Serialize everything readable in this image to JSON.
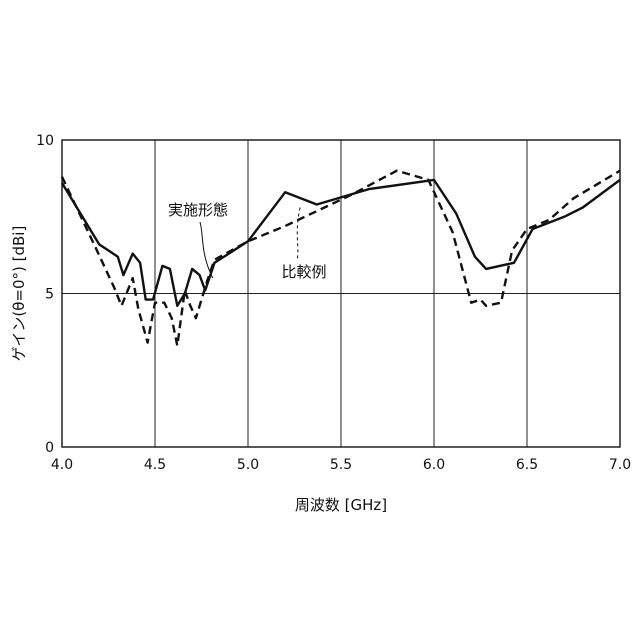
{
  "chart_data": {
    "type": "line",
    "xlabel": "周波数 [GHz]",
    "ylabel": "ゲイン(θ=0°) [dBi]",
    "xlim": [
      4.0,
      7.0
    ],
    "ylim": [
      0,
      10
    ],
    "x_ticks": [
      4.0,
      4.5,
      5.0,
      5.5,
      6.0,
      6.5,
      7.0
    ],
    "x_tick_labels": [
      "4.0",
      "4.5",
      "5.0",
      "5.5",
      "6.0",
      "6.5",
      "7.0"
    ],
    "y_ticks": [
      0,
      5,
      10
    ],
    "y_tick_labels": [
      "0",
      "5",
      "10"
    ],
    "grid": true,
    "series": [
      {
        "name": "実施形態",
        "style": "solid",
        "color": "#111111",
        "points": [
          [
            4.0,
            8.6
          ],
          [
            4.2,
            6.6
          ],
          [
            4.3,
            6.2
          ],
          [
            4.33,
            5.6
          ],
          [
            4.38,
            6.3
          ],
          [
            4.42,
            6.0
          ],
          [
            4.45,
            4.8
          ],
          [
            4.49,
            4.8
          ],
          [
            4.54,
            5.9
          ],
          [
            4.58,
            5.8
          ],
          [
            4.62,
            4.6
          ],
          [
            4.66,
            5.0
          ],
          [
            4.7,
            5.8
          ],
          [
            4.74,
            5.6
          ],
          [
            4.77,
            5.1
          ],
          [
            4.82,
            6.0
          ],
          [
            5.0,
            6.7
          ],
          [
            5.2,
            8.3
          ],
          [
            5.37,
            7.9
          ],
          [
            5.65,
            8.4
          ],
          [
            6.0,
            8.7
          ],
          [
            6.12,
            7.6
          ],
          [
            6.22,
            6.2
          ],
          [
            6.28,
            5.8
          ],
          [
            6.43,
            6.0
          ],
          [
            6.53,
            7.1
          ],
          [
            6.7,
            7.5
          ],
          [
            6.8,
            7.8
          ],
          [
            7.0,
            8.7
          ]
        ]
      },
      {
        "name": "比較例",
        "style": "dashed",
        "color": "#111111",
        "points": [
          [
            4.0,
            8.8
          ],
          [
            4.18,
            6.5
          ],
          [
            4.28,
            5.2
          ],
          [
            4.32,
            4.6
          ],
          [
            4.38,
            5.5
          ],
          [
            4.41,
            4.5
          ],
          [
            4.46,
            3.4
          ],
          [
            4.5,
            4.7
          ],
          [
            4.55,
            4.7
          ],
          [
            4.59,
            4.2
          ],
          [
            4.62,
            3.3
          ],
          [
            4.66,
            5.1
          ],
          [
            4.69,
            4.6
          ],
          [
            4.72,
            4.2
          ],
          [
            4.78,
            5.4
          ],
          [
            4.82,
            6.1
          ],
          [
            5.0,
            6.7
          ],
          [
            5.2,
            7.2
          ],
          [
            5.55,
            8.2
          ],
          [
            5.8,
            9.0
          ],
          [
            5.97,
            8.7
          ],
          [
            6.1,
            7.0
          ],
          [
            6.2,
            4.7
          ],
          [
            6.25,
            4.8
          ],
          [
            6.28,
            4.6
          ],
          [
            6.36,
            4.7
          ],
          [
            6.42,
            6.4
          ],
          [
            6.5,
            7.1
          ],
          [
            6.62,
            7.4
          ],
          [
            6.75,
            8.1
          ],
          [
            7.0,
            9.0
          ]
        ]
      }
    ],
    "annotations": [
      {
        "text": "実施形態",
        "series": 0,
        "anchor": [
          4.81,
          5.5
        ]
      },
      {
        "text": "比較例",
        "series": 1,
        "anchor": [
          5.28,
          7.8
        ]
      }
    ]
  }
}
